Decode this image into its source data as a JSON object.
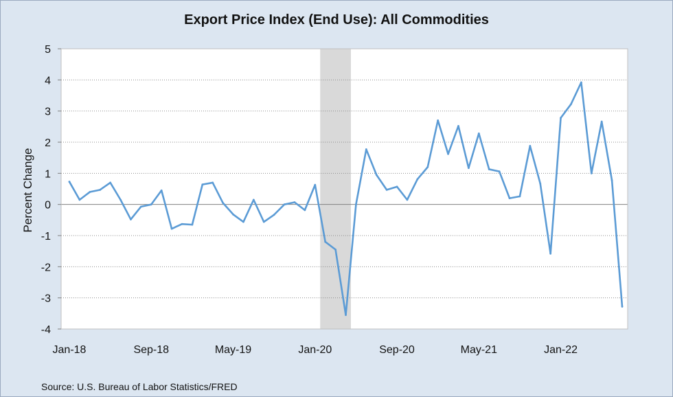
{
  "chart_data": {
    "type": "line",
    "title": "Export Price Index (End Use): All Commodities",
    "ylabel": "Percent Change",
    "xlabel": "",
    "source": "Source: U.S. Bureau of Labor Statistics/FRED",
    "ylim": [
      -4,
      5
    ],
    "yticks": [
      "5",
      "4",
      "3",
      "2",
      "1",
      "0",
      "-1",
      "-2",
      "-3",
      "-4"
    ],
    "xtick_labels": [
      "Jan-18",
      "Sep-18",
      "May-19",
      "Jan-20",
      "Sep-20",
      "May-21",
      "Jan-22"
    ],
    "xtick_months": [
      "2018-01",
      "2018-09",
      "2019-05",
      "2020-01",
      "2020-09",
      "2021-05",
      "2022-01"
    ],
    "x_range": [
      "2018-01",
      "2022-07"
    ],
    "grid": true,
    "legend": "none",
    "line_color": "#5b9bd5",
    "shading_color": "#d9d9d9",
    "shaded_periods": [
      {
        "start": "2020-02",
        "end": "2020-04"
      }
    ],
    "series": [
      {
        "x": [
          "2018-01",
          "2018-02",
          "2018-03",
          "2018-04",
          "2018-05",
          "2018-06",
          "2018-07",
          "2018-08",
          "2018-09",
          "2018-10",
          "2018-11",
          "2018-12",
          "2019-01",
          "2019-02",
          "2019-03",
          "2019-04",
          "2019-05",
          "2019-06",
          "2019-07",
          "2019-08",
          "2019-09",
          "2019-10",
          "2019-11",
          "2019-12",
          "2020-01",
          "2020-02",
          "2020-03",
          "2020-04",
          "2020-05",
          "2020-06",
          "2020-07",
          "2020-08",
          "2020-09",
          "2020-10",
          "2020-11",
          "2020-12",
          "2021-01",
          "2021-02",
          "2021-03",
          "2021-04",
          "2021-05",
          "2021-06",
          "2021-07",
          "2021-08",
          "2021-09",
          "2021-10",
          "2021-11",
          "2021-12",
          "2022-01",
          "2022-02",
          "2022-03",
          "2022-04",
          "2022-05",
          "2022-06",
          "2022-07"
        ],
        "values": [
          0.73,
          0.15,
          0.4,
          0.47,
          0.7,
          0.15,
          -0.48,
          -0.07,
          0.0,
          0.45,
          -0.78,
          -0.63,
          -0.65,
          0.64,
          0.7,
          0.05,
          -0.32,
          -0.56,
          0.15,
          -0.56,
          -0.33,
          0.0,
          0.07,
          -0.18,
          0.63,
          -1.2,
          -1.45,
          -3.55,
          0.0,
          1.77,
          0.95,
          0.47,
          0.57,
          0.15,
          0.81,
          1.2,
          2.7,
          1.62,
          2.52,
          1.17,
          2.28,
          1.13,
          1.06,
          0.2,
          0.26,
          1.88,
          0.67,
          -1.58,
          2.78,
          3.22,
          3.92,
          1.0,
          2.66,
          0.77,
          -3.28
        ]
      }
    ]
  }
}
